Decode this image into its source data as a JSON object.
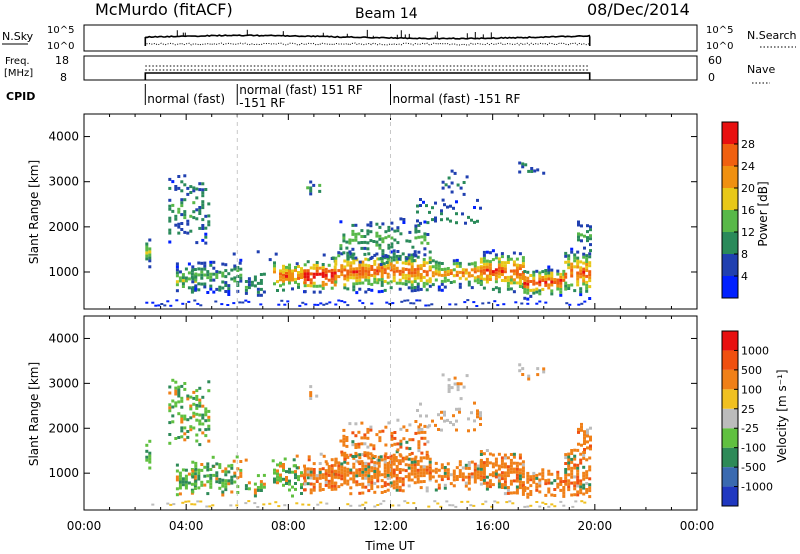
{
  "header": {
    "station": "McMurdo (fitACF)",
    "beam": "Beam 14",
    "date": "08/Dec/2014"
  },
  "top_panels": {
    "nsky_label": "N.Sky",
    "nsky_ticks": [
      "10^5",
      "10^0"
    ],
    "nsearch_label": "N.Search",
    "freq_label": "Freq.",
    "freq_unit": "[MHz]",
    "freq_ticks": [
      "18",
      "8"
    ],
    "nave_label": "Nave",
    "nave_ticks": [
      "60",
      "0"
    ],
    "cpid_label": "CPID",
    "cpid_segments": [
      {
        "start_hour": 2.4,
        "lines": [
          "normal (fast)"
        ]
      },
      {
        "start_hour": 6.0,
        "lines": [
          "normal (fast) 151 RF",
          "-151 RF"
        ]
      },
      {
        "start_hour": 12.0,
        "lines": [
          "normal (fast) -151 RF"
        ]
      }
    ]
  },
  "chart_data": [
    {
      "type": "heatmap",
      "name": "power",
      "xlabel": "",
      "ylabel": "Slant Range [km]",
      "xlim": [
        0,
        24
      ],
      "ylim": [
        180,
        4500
      ],
      "yticks": [
        1000,
        2000,
        3000,
        4000
      ],
      "ytick_labels": [
        "1000",
        "2000",
        "3000",
        "4000"
      ],
      "data_extent_hours": [
        2.4,
        19.8
      ],
      "colorbar": {
        "label": "Power [dB]",
        "range": [
          0,
          32
        ],
        "tick_values": [
          4,
          8,
          12,
          16,
          20,
          24,
          28
        ],
        "tick_labels": [
          "4",
          "8",
          "12",
          "16",
          "20",
          "24",
          "28"
        ],
        "colors": [
          "#0020ff",
          "#2040b0",
          "#2a8a5a",
          "#58b848",
          "#e8c818",
          "#f09010",
          "#f06010",
          "#e81010"
        ]
      }
    },
    {
      "type": "heatmap",
      "name": "velocity",
      "xlabel": "Time UT",
      "ylabel": "Slant Range [km]",
      "xlim": [
        0,
        24
      ],
      "ylim": [
        180,
        4500
      ],
      "yticks": [
        1000,
        2000,
        3000,
        4000
      ],
      "ytick_labels": [
        "1000",
        "2000",
        "3000",
        "4000"
      ],
      "xticks": [
        0,
        4,
        8,
        12,
        16,
        20,
        24
      ],
      "xtick_labels": [
        "00:00",
        "04:00",
        "08:00",
        "12:00",
        "16:00",
        "20:00",
        "00:00"
      ],
      "data_extent_hours": [
        2.4,
        19.8
      ],
      "colorbar": {
        "label": "Velocity [m s⁻¹]",
        "tick_labels": [
          "1000",
          "500",
          "100",
          "25",
          "-25",
          "-100",
          "-500",
          "-1000"
        ],
        "colors": [
          "#2038c0",
          "#3a6ab0",
          "#2e8a58",
          "#60c040",
          "#bcbcbc",
          "#f0c020",
          "#f08018",
          "#f05010",
          "#e81010"
        ]
      }
    }
  ]
}
